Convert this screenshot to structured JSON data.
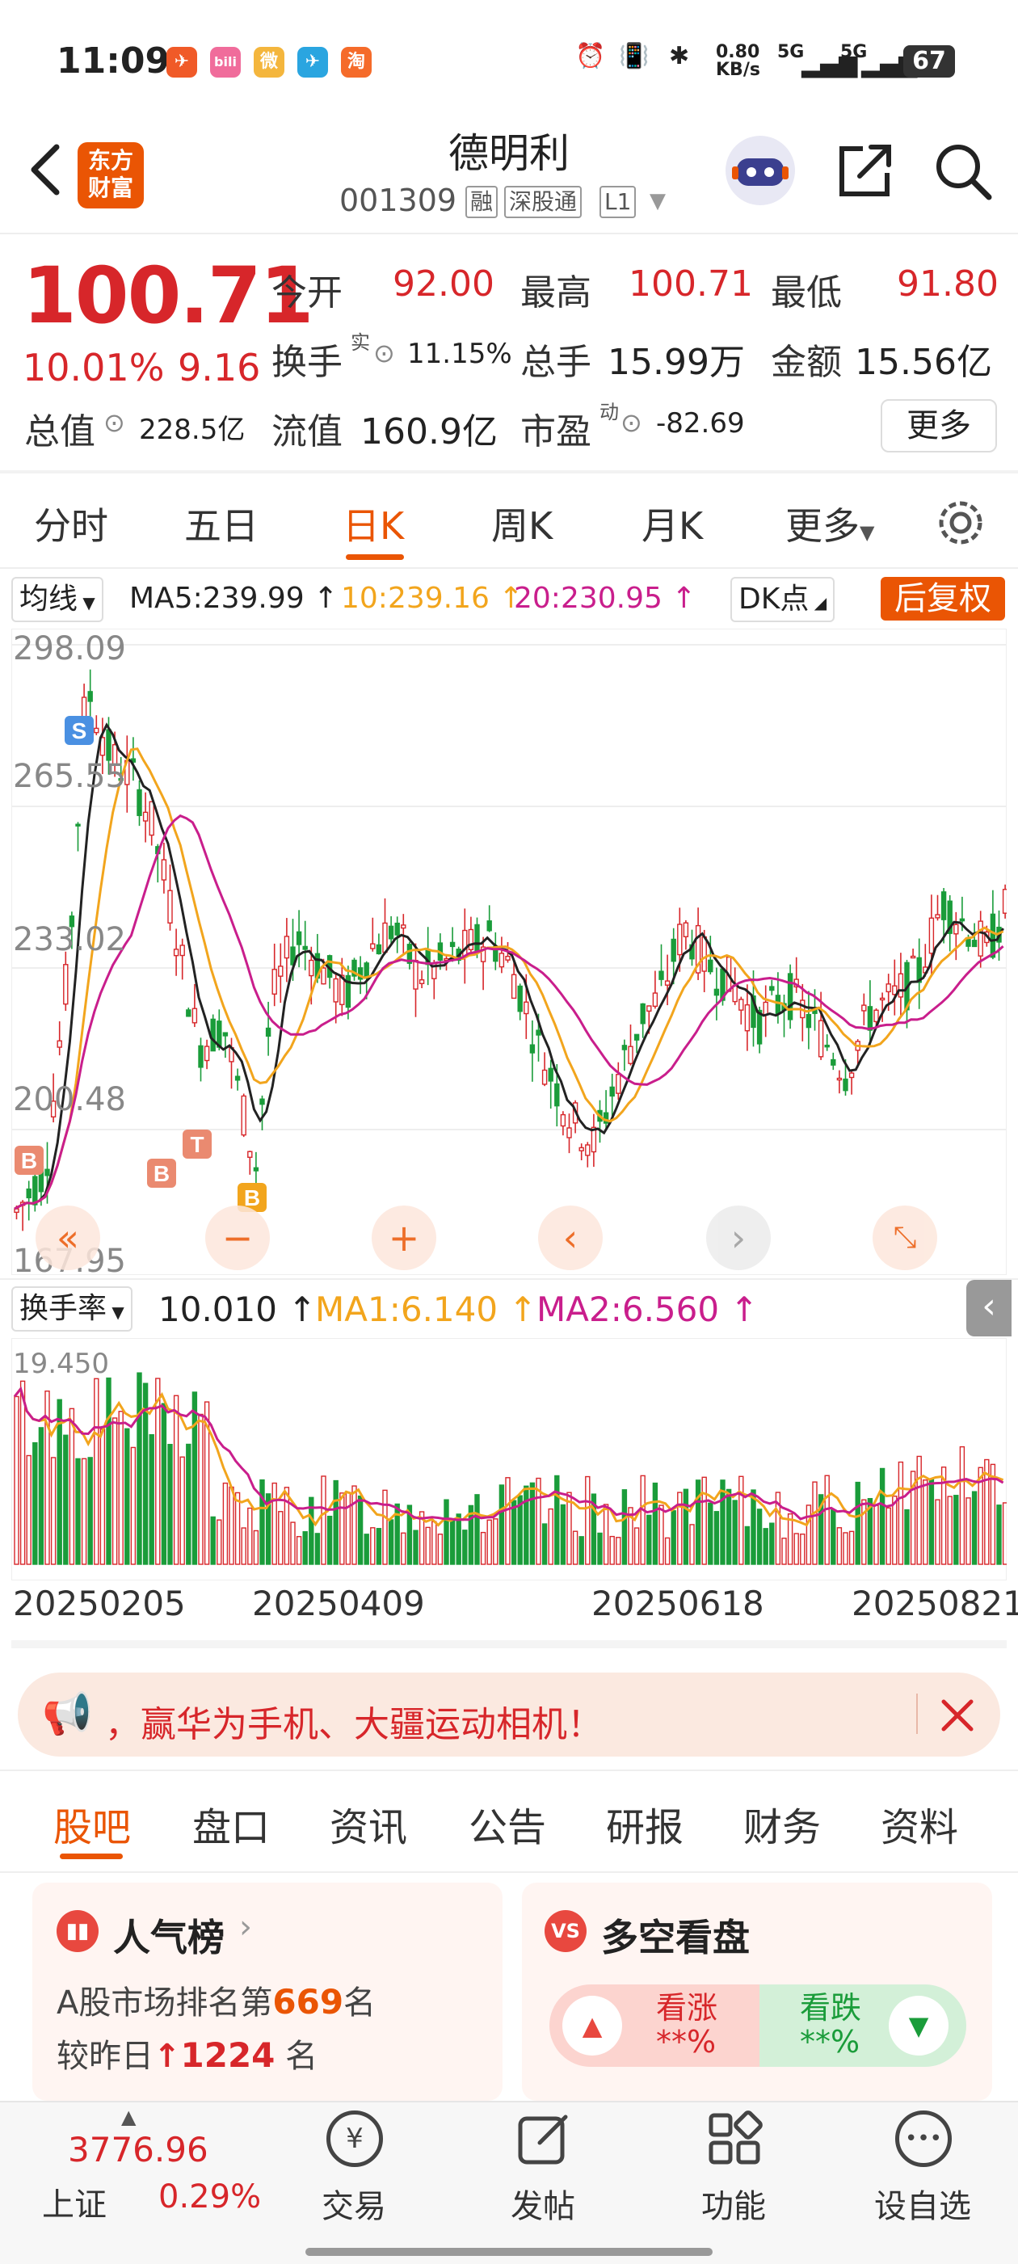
{
  "status_bar": {
    "time": "11:09",
    "apps": [
      "✈",
      "bili",
      "微",
      "✈",
      "淘"
    ],
    "net_speed": "0.80",
    "net_unit": "KB/s",
    "sim1": "5G",
    "sim2": "5G",
    "battery": "67"
  },
  "header": {
    "back_icon": "chevron-left-icon",
    "logo_line1": "东方",
    "logo_line2": "财富",
    "title": "德明利",
    "code": "001309",
    "tags": [
      "融",
      "深股通",
      "L1"
    ],
    "share_icon": "share-icon",
    "search_icon": "search-icon"
  },
  "quote": {
    "price": "100.71",
    "change_pct": "10.01%",
    "change": "9.16",
    "open_label": "今开",
    "open": "92.00",
    "high_label": "最高",
    "high": "100.71",
    "low_label": "最低",
    "low": "91.80",
    "turnover_label": "换手",
    "turnover_sup": "实",
    "turnover": "11.15%",
    "volume_label": "总手",
    "volume": "15.99万",
    "amount_label": "金额",
    "amount": "15.56亿",
    "mktcap_label": "总值",
    "mktcap": "228.5亿",
    "float_label": "流值",
    "float": "160.9亿",
    "pe_label": "市盈",
    "pe_sup": "动",
    "pe": "-82.69",
    "more_label": "更多"
  },
  "chart_tabs": [
    "分时",
    "五日",
    "日K",
    "周K",
    "月K",
    "更多"
  ],
  "chart_tabs_active": "日K",
  "kline": {
    "indicator": "均线",
    "ma5": "MA5:239.99 ↑",
    "ma10": "10:239.16 ↑",
    "ma20": "20:230.95 ↑",
    "dk": "DK点",
    "adjust": "后复权",
    "y_labels": [
      "298.09",
      "265.55",
      "233.02",
      "200.48",
      "167.95"
    ],
    "markers": [
      "S",
      "B",
      "B",
      "T",
      "B"
    ]
  },
  "volume_panel": {
    "indicator": "换手率",
    "value": "10.010 ↑",
    "ma1": "MA1:6.140 ↑",
    "ma2": "MA2:6.560 ↑",
    "max_label": "19.450",
    "dates": [
      "20250205",
      "20250409",
      "20250618",
      "20250821"
    ]
  },
  "chart_data": {
    "type": "candlestick",
    "ylim": [
      167.95,
      298.09
    ],
    "y_ticks": [
      298.09,
      265.55,
      233.02,
      200.48,
      167.95
    ],
    "x_ticks": [
      "20250205",
      "20250409",
      "20250618",
      "20250821"
    ],
    "series": [
      {
        "name": "MA5",
        "values": [
          239.99
        ]
      },
      {
        "name": "MA10",
        "values": [
          239.16
        ]
      },
      {
        "name": "MA20",
        "values": [
          230.95
        ]
      }
    ],
    "turnover_ylim": [
      0,
      19.45
    ],
    "turnover_latest": 10.01,
    "turnover_ma1": 6.14,
    "turnover_ma2": 6.56
  },
  "announcement": {
    "text": "，赢华为手机、大疆运动相机！",
    "close_icon": "close-icon"
  },
  "bottom_tabs": [
    "股吧",
    "盘口",
    "资讯",
    "公告",
    "研报",
    "财务",
    "资料"
  ],
  "cards": {
    "popularity": {
      "title": "人气榜",
      "rank_prefix": "A股市场排名第",
      "rank": "669",
      "rank_suffix": "名",
      "change_prefix": "较昨日",
      "change": "1224",
      "change_suffix": "名"
    },
    "vote": {
      "title": "多空看盘",
      "up_label": "看涨",
      "up_value": "**%",
      "down_label": "看跌",
      "down_value": "**%"
    }
  },
  "bottom_nav": {
    "index_value": "3776.96",
    "index_name": "上证",
    "index_pct": "0.29%",
    "items": [
      "交易",
      "发帖",
      "功能",
      "设自选"
    ]
  }
}
